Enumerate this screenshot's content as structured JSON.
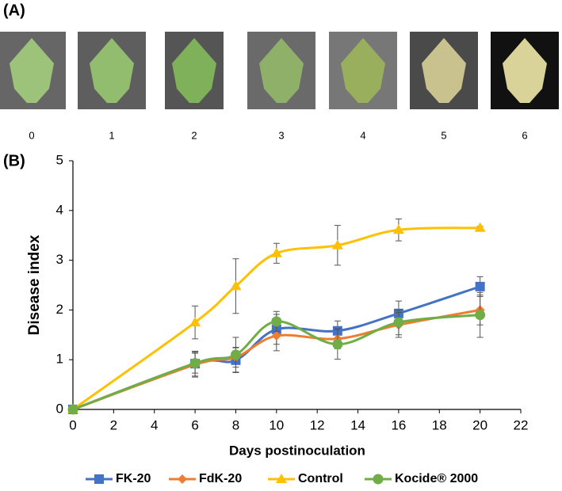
{
  "panel_a": {
    "label": "(A)",
    "leaf_scores": [
      "0",
      "1",
      "2",
      "3",
      "4",
      "5",
      "6"
    ]
  },
  "chart_data": {
    "type": "line",
    "panel_label": "(B)",
    "x_label": "Days postinoculation",
    "y_label": "Disease index",
    "x": [
      0,
      6,
      8,
      10,
      13,
      16,
      20
    ],
    "xlim": [
      0,
      22
    ],
    "xticks": [
      0,
      2,
      4,
      6,
      8,
      10,
      12,
      14,
      16,
      18,
      20,
      22
    ],
    "ylim": [
      0,
      5
    ],
    "yticks": [
      0,
      1,
      2,
      3,
      4,
      5
    ],
    "legend": "bottom",
    "series": [
      {
        "name": "FK-20",
        "color": "#4472c4",
        "marker": "square",
        "values": [
          0,
          0.92,
          0.99,
          1.61,
          1.58,
          1.93,
          2.47
        ],
        "errors": [
          0,
          0.25,
          0.25,
          0.3,
          0.2,
          0.25,
          0.2
        ]
      },
      {
        "name": "FdK-20",
        "color": "#ed7d31",
        "marker": "diamond",
        "values": [
          0,
          0.9,
          1.05,
          1.48,
          1.42,
          1.7,
          2.0
        ],
        "errors": [
          0,
          0.25,
          0.2,
          0.3,
          0.2,
          0.25,
          0.3
        ]
      },
      {
        "name": "Control",
        "color": "#ffc000",
        "marker": "triangle",
        "values": [
          0,
          1.75,
          2.48,
          3.14,
          3.3,
          3.61,
          3.65
        ],
        "errors": [
          0,
          0.33,
          0.55,
          0.2,
          0.4,
          0.22,
          0.03
        ]
      },
      {
        "name": "Kocide® 2000",
        "color": "#70ad47",
        "marker": "circle",
        "values": [
          0,
          0.93,
          1.1,
          1.77,
          1.31,
          1.75,
          1.9
        ],
        "errors": [
          0,
          0.2,
          0.35,
          0.2,
          0.3,
          0.25,
          0.45
        ]
      }
    ]
  }
}
